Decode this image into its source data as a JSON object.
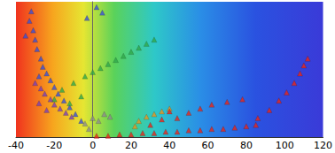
{
  "chart_data": {
    "type": "scatter",
    "marker": "triangle",
    "tick_labels": "x",
    "grid": false,
    "xlim": [
      -40,
      120
    ],
    "xticks": [
      -40,
      -20,
      0,
      20,
      40,
      60,
      80,
      100,
      120
    ],
    "ylim": [
      0,
      100
    ],
    "series": [
      {
        "color": "#3a4fd6",
        "points": [
          [
            -32,
            93
          ],
          [
            -33,
            86
          ],
          [
            -31,
            79
          ],
          [
            -30,
            72
          ],
          [
            -29,
            65
          ],
          [
            -27,
            58
          ],
          [
            -26,
            52
          ],
          [
            -24,
            47
          ],
          [
            -22,
            42
          ],
          [
            -20,
            37
          ],
          [
            -18,
            32
          ],
          [
            -15,
            27
          ],
          [
            -12,
            22
          ],
          [
            -9,
            17
          ],
          [
            -6,
            12
          ],
          [
            -35,
            75
          ],
          [
            -28,
            45
          ],
          [
            2,
            96
          ],
          [
            5,
            92
          ],
          [
            -3,
            88
          ]
        ]
      },
      {
        "color": "#2fa84a",
        "points": [
          [
            -4,
            45
          ],
          [
            0,
            48
          ],
          [
            4,
            51
          ],
          [
            8,
            54
          ],
          [
            12,
            57
          ],
          [
            16,
            60
          ],
          [
            20,
            63
          ],
          [
            24,
            66
          ],
          [
            28,
            69
          ],
          [
            32,
            72
          ],
          [
            -10,
            40
          ],
          [
            -16,
            35
          ],
          [
            -20,
            28
          ],
          [
            -12,
            25
          ],
          [
            -6,
            30
          ]
        ]
      },
      {
        "color": "#7a3fb8",
        "points": [
          [
            -30,
            40
          ],
          [
            -27,
            36
          ],
          [
            -25,
            32
          ],
          [
            -22,
            28
          ],
          [
            -20,
            24
          ],
          [
            -17,
            21
          ],
          [
            -14,
            18
          ],
          [
            -11,
            15
          ],
          [
            -28,
            25
          ],
          [
            -24,
            20
          ]
        ]
      },
      {
        "color": "#8c8c8c",
        "points": [
          [
            -4,
            10
          ],
          [
            0,
            14
          ],
          [
            3,
            12
          ],
          [
            6,
            17
          ],
          [
            9,
            15
          ],
          [
            -2,
            6
          ]
        ]
      },
      {
        "color": "#e8961e",
        "points": [
          [
            24,
            12
          ],
          [
            28,
            15
          ],
          [
            32,
            17
          ],
          [
            36,
            19
          ],
          [
            40,
            21
          ],
          [
            22,
            8
          ]
        ]
      },
      {
        "color": "#e8261a",
        "points": [
          [
            2,
            1
          ],
          [
            8,
            1
          ],
          [
            14,
            2
          ],
          [
            20,
            2
          ],
          [
            26,
            3
          ],
          [
            32,
            3
          ],
          [
            38,
            4
          ],
          [
            44,
            4
          ],
          [
            50,
            5
          ],
          [
            56,
            5
          ],
          [
            62,
            6
          ],
          [
            68,
            6
          ],
          [
            74,
            7
          ],
          [
            80,
            8
          ],
          [
            85,
            9
          ],
          [
            30,
            9
          ],
          [
            36,
            13
          ],
          [
            40,
            19
          ],
          [
            44,
            14
          ],
          [
            50,
            18
          ],
          [
            56,
            21
          ],
          [
            62,
            24
          ],
          [
            70,
            26
          ],
          [
            78,
            28
          ],
          [
            86,
            14
          ],
          [
            92,
            20
          ],
          [
            97,
            27
          ],
          [
            101,
            33
          ],
          [
            105,
            40
          ],
          [
            108,
            47
          ],
          [
            110,
            53
          ],
          [
            112,
            58
          ]
        ]
      }
    ]
  }
}
